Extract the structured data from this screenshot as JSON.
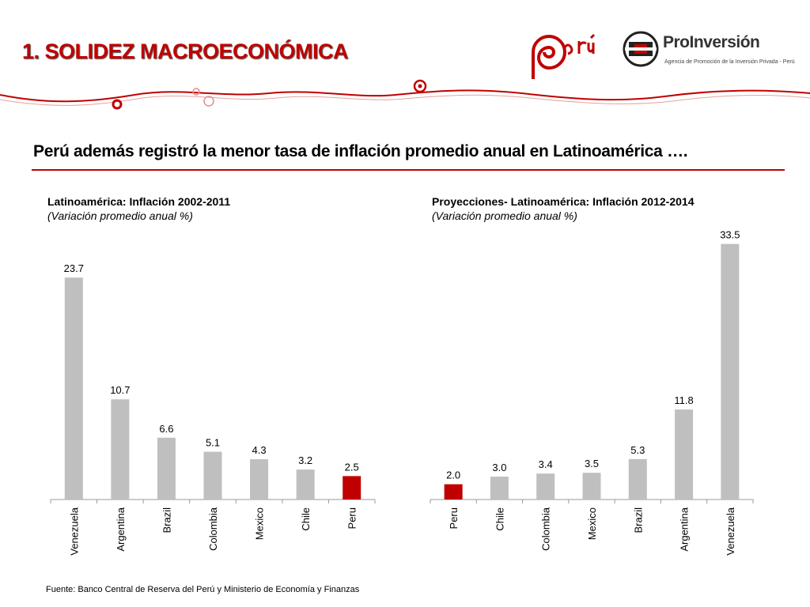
{
  "header": {
    "title": "1. SOLIDEZ MACROECONÓMICA",
    "logo_peru_text": "Perú",
    "logo_proinversion_name": "ProInversión",
    "logo_proinversion_tagline": "Agencia de Promoción de la Inversión Privada - Perú"
  },
  "headline": "Perú además registró la menor tasa de inflación promedio anual en Latinoamérica ….",
  "colors": {
    "accent": "#c00000",
    "bar_default": "#bfbfbf",
    "bar_highlight": "#c00000",
    "axis": "#999999"
  },
  "chart_data": [
    {
      "type": "bar",
      "title": "Latinoamérica: Inflación 2002-2011",
      "subtitle": "(Variación promedio anual %)",
      "categories": [
        "Venezuela",
        "Argentina",
        "Brazil",
        "Colombia",
        "Mexico",
        "Chile",
        "Peru"
      ],
      "values": [
        23.7,
        10.7,
        6.6,
        5.1,
        4.3,
        3.2,
        2.5
      ],
      "value_labels": [
        "23.7",
        "10.7",
        "6.6",
        "5.1",
        "4.3",
        "3.2",
        "2.5"
      ],
      "highlight": "Peru",
      "ylim": [
        0,
        26
      ],
      "grid": false,
      "legend": "none",
      "xlabel": "",
      "ylabel": ""
    },
    {
      "type": "bar",
      "title": "Proyecciones- Latinoamérica: Inflación 2012-2014",
      "subtitle": "(Variación promedio anual %)",
      "categories": [
        "Peru",
        "Chile",
        "Colombia",
        "Mexico",
        "Brazil",
        "Argentina",
        "Venezuela"
      ],
      "values": [
        2.0,
        3.0,
        3.4,
        3.5,
        5.3,
        11.8,
        33.5
      ],
      "value_labels": [
        "2.0",
        "3.0",
        "3.4",
        "3.5",
        "5.3",
        "11.8",
        "33.5"
      ],
      "highlight": "Peru",
      "ylim": [
        0,
        34.5
      ],
      "grid": false,
      "legend": "none",
      "xlabel": "",
      "ylabel": ""
    }
  ],
  "footer": {
    "source": "Fuente: Banco Central de Reserva del Perú y Ministerio de Economía y Finanzas"
  }
}
